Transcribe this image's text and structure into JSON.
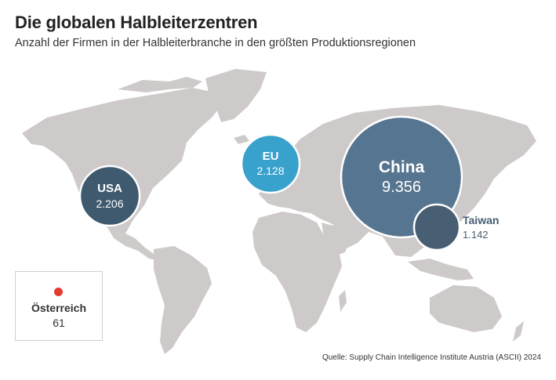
{
  "header": {
    "title": "Die globalen Halbleiterzentren",
    "subtitle": "Anzahl der Firmen in der Halbleiterbranche in den größten Produktionsregionen"
  },
  "regions": [
    {
      "name": "USA",
      "value": "2.206",
      "count": 2206,
      "color": "#3f5a6f"
    },
    {
      "name": "EU",
      "value": "2.128",
      "count": 2128,
      "color": "#38a1cc"
    },
    {
      "name": "China",
      "value": "9.356",
      "count": 9356,
      "color": "#567590"
    },
    {
      "name": "Taiwan",
      "value": "1.142",
      "count": 1142,
      "color": "#485e72"
    }
  ],
  "inset": {
    "name": "Österreich",
    "value": "61",
    "dot_color": "#e53b2f"
  },
  "colors": {
    "land": "#cfcaca",
    "background": "#ffffff"
  },
  "source": "Quelle: Supply Chain Intelligence Institute Austria (ASCII) 2024"
}
